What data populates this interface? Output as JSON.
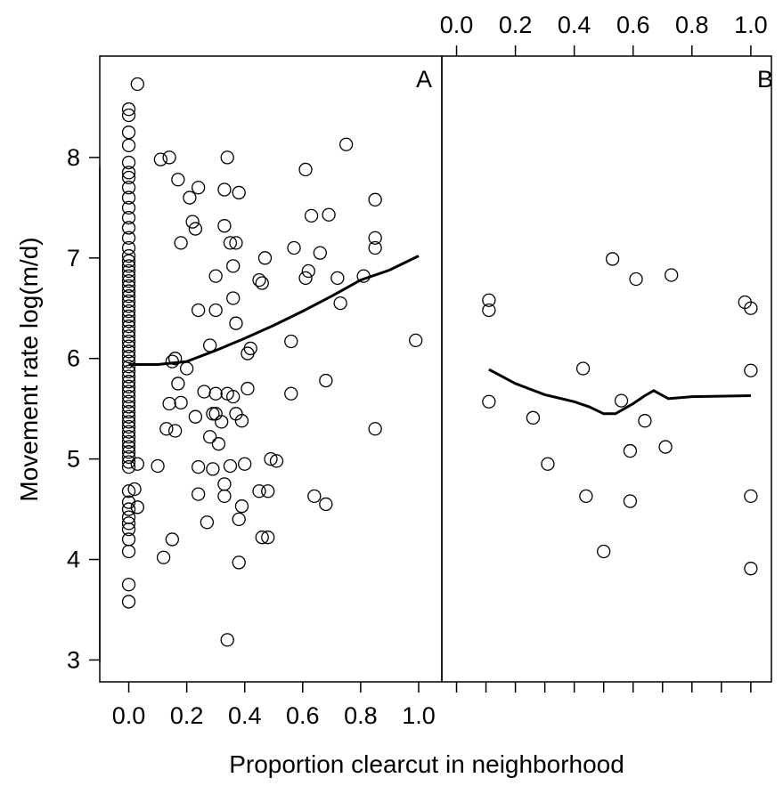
{
  "chart_data": {
    "type": "scatter",
    "ylabel": "Movement rate log(m/d)",
    "xlabel": "Proportion clearcut in neighborhood",
    "ylim": [
      2.8,
      9.0
    ],
    "yticks": [
      3,
      4,
      5,
      6,
      7,
      8
    ],
    "ytick_labels": [
      "3",
      "4",
      "5",
      "6",
      "7",
      "8"
    ],
    "xtick_labels": [
      "0.0",
      "0.2",
      "0.4",
      "0.6",
      "0.8",
      "1.0"
    ],
    "grid": false,
    "panels": [
      {
        "label": "A",
        "xlim": [
          -0.1,
          1.08
        ],
        "xticks": [
          0,
          0.2,
          0.4,
          0.6,
          0.8,
          1.0
        ],
        "tick_label_position": "bottom",
        "points": [
          [
            0,
            3.58
          ],
          [
            0,
            3.75
          ],
          [
            0,
            4.08
          ],
          [
            0,
            4.2
          ],
          [
            0,
            4.3
          ],
          [
            0,
            4.36
          ],
          [
            0,
            4.42
          ],
          [
            0,
            4.5
          ],
          [
            0,
            4.57
          ],
          [
            0,
            4.68
          ],
          [
            0,
            4.92
          ],
          [
            0,
            4.97
          ],
          [
            0,
            5.02
          ],
          [
            0,
            5.07
          ],
          [
            0,
            5.12
          ],
          [
            0,
            5.17
          ],
          [
            0,
            5.22
          ],
          [
            0,
            5.27
          ],
          [
            0,
            5.32
          ],
          [
            0,
            5.37
          ],
          [
            0,
            5.42
          ],
          [
            0,
            5.47
          ],
          [
            0,
            5.52
          ],
          [
            0,
            5.57
          ],
          [
            0,
            5.62
          ],
          [
            0,
            5.67
          ],
          [
            0,
            5.72
          ],
          [
            0,
            5.77
          ],
          [
            0,
            5.82
          ],
          [
            0,
            5.87
          ],
          [
            0,
            5.92
          ],
          [
            0,
            5.97
          ],
          [
            0,
            6.02
          ],
          [
            0,
            6.07
          ],
          [
            0,
            6.12
          ],
          [
            0,
            6.17
          ],
          [
            0,
            6.22
          ],
          [
            0,
            6.27
          ],
          [
            0,
            6.32
          ],
          [
            0,
            6.37
          ],
          [
            0,
            6.42
          ],
          [
            0,
            6.47
          ],
          [
            0,
            6.52
          ],
          [
            0,
            6.57
          ],
          [
            0,
            6.62
          ],
          [
            0,
            6.67
          ],
          [
            0,
            6.72
          ],
          [
            0,
            6.77
          ],
          [
            0,
            6.82
          ],
          [
            0,
            6.87
          ],
          [
            0,
            6.92
          ],
          [
            0,
            6.97
          ],
          [
            0,
            7.02
          ],
          [
            0,
            7.1
          ],
          [
            0,
            7.2
          ],
          [
            0,
            7.3
          ],
          [
            0,
            7.4
          ],
          [
            0,
            7.5
          ],
          [
            0,
            7.6
          ],
          [
            0,
            7.7
          ],
          [
            0,
            7.8
          ],
          [
            0,
            7.85
          ],
          [
            0,
            7.95
          ],
          [
            0,
            8.12
          ],
          [
            0,
            8.25
          ],
          [
            0,
            8.42
          ],
          [
            0,
            8.48
          ],
          [
            0.02,
            4.7
          ],
          [
            0.03,
            4.52
          ],
          [
            0.03,
            4.95
          ],
          [
            0.03,
            8.73
          ],
          [
            0.1,
            4.93
          ],
          [
            0.11,
            7.98
          ],
          [
            0.12,
            4.02
          ],
          [
            0.13,
            5.3
          ],
          [
            0.14,
            5.55
          ],
          [
            0.14,
            8.0
          ],
          [
            0.15,
            5.97
          ],
          [
            0.15,
            4.2
          ],
          [
            0.16,
            5.28
          ],
          [
            0.16,
            6.0
          ],
          [
            0.17,
            5.75
          ],
          [
            0.17,
            7.78
          ],
          [
            0.18,
            5.56
          ],
          [
            0.18,
            7.15
          ],
          [
            0.2,
            5.9
          ],
          [
            0.21,
            7.6
          ],
          [
            0.22,
            7.36
          ],
          [
            0.23,
            7.29
          ],
          [
            0.23,
            5.42
          ],
          [
            0.24,
            7.7
          ],
          [
            0.24,
            4.92
          ],
          [
            0.24,
            4.65
          ],
          [
            0.24,
            6.48
          ],
          [
            0.26,
            5.67
          ],
          [
            0.27,
            4.37
          ],
          [
            0.28,
            6.13
          ],
          [
            0.28,
            5.22
          ],
          [
            0.29,
            5.45
          ],
          [
            0.29,
            4.9
          ],
          [
            0.3,
            6.82
          ],
          [
            0.3,
            5.65
          ],
          [
            0.3,
            5.45
          ],
          [
            0.3,
            6.48
          ],
          [
            0.31,
            5.15
          ],
          [
            0.32,
            5.37
          ],
          [
            0.33,
            7.68
          ],
          [
            0.33,
            7.32
          ],
          [
            0.33,
            4.75
          ],
          [
            0.33,
            4.63
          ],
          [
            0.34,
            8.0
          ],
          [
            0.34,
            5.65
          ],
          [
            0.34,
            3.2
          ],
          [
            0.35,
            7.15
          ],
          [
            0.35,
            4.93
          ],
          [
            0.36,
            6.92
          ],
          [
            0.36,
            6.6
          ],
          [
            0.36,
            5.62
          ],
          [
            0.37,
            7.15
          ],
          [
            0.37,
            6.35
          ],
          [
            0.37,
            5.45
          ],
          [
            0.38,
            7.65
          ],
          [
            0.38,
            4.4
          ],
          [
            0.38,
            3.97
          ],
          [
            0.39,
            5.38
          ],
          [
            0.39,
            4.53
          ],
          [
            0.4,
            4.95
          ],
          [
            0.41,
            6.05
          ],
          [
            0.41,
            5.7
          ],
          [
            0.42,
            6.1
          ],
          [
            0.45,
            6.78
          ],
          [
            0.45,
            4.68
          ],
          [
            0.46,
            6.75
          ],
          [
            0.46,
            4.22
          ],
          [
            0.47,
            7.0
          ],
          [
            0.48,
            4.68
          ],
          [
            0.48,
            4.22
          ],
          [
            0.49,
            5.0
          ],
          [
            0.51,
            4.98
          ],
          [
            0.56,
            6.17
          ],
          [
            0.56,
            5.65
          ],
          [
            0.57,
            7.1
          ],
          [
            0.61,
            7.88
          ],
          [
            0.61,
            6.8
          ],
          [
            0.62,
            6.87
          ],
          [
            0.63,
            7.42
          ],
          [
            0.64,
            4.63
          ],
          [
            0.66,
            7.05
          ],
          [
            0.68,
            5.78
          ],
          [
            0.68,
            4.55
          ],
          [
            0.69,
            7.43
          ],
          [
            0.72,
            6.8
          ],
          [
            0.73,
            6.55
          ],
          [
            0.75,
            8.13
          ],
          [
            0.81,
            6.82
          ],
          [
            0.85,
            7.58
          ],
          [
            0.85,
            7.1
          ],
          [
            0.85,
            7.2
          ],
          [
            0.85,
            5.3
          ],
          [
            0.99,
            6.18
          ]
        ],
        "trend": [
          [
            0,
            5.94
          ],
          [
            0.1,
            5.94
          ],
          [
            0.2,
            5.97
          ],
          [
            0.3,
            6.08
          ],
          [
            0.4,
            6.2
          ],
          [
            0.5,
            6.33
          ],
          [
            0.6,
            6.47
          ],
          [
            0.7,
            6.62
          ],
          [
            0.8,
            6.78
          ],
          [
            0.9,
            6.88
          ],
          [
            1.0,
            7.02
          ]
        ]
      },
      {
        "label": "B",
        "xlim": [
          -0.05,
          1.07
        ],
        "xticks": [
          0,
          0.2,
          0.4,
          0.6,
          0.8,
          1.0
        ],
        "minor_xticks": [
          0.1,
          0.3,
          0.5,
          0.7,
          0.9
        ],
        "tick_label_position": "top",
        "points": [
          [
            0.11,
            6.58
          ],
          [
            0.11,
            6.48
          ],
          [
            0.11,
            5.57
          ],
          [
            0.26,
            5.41
          ],
          [
            0.31,
            4.95
          ],
          [
            0.43,
            5.9
          ],
          [
            0.44,
            4.63
          ],
          [
            0.5,
            4.08
          ],
          [
            0.53,
            6.99
          ],
          [
            0.56,
            5.58
          ],
          [
            0.59,
            5.08
          ],
          [
            0.59,
            4.58
          ],
          [
            0.61,
            6.79
          ],
          [
            0.64,
            5.38
          ],
          [
            0.71,
            5.12
          ],
          [
            0.73,
            6.83
          ],
          [
            0.98,
            6.56
          ],
          [
            1.0,
            6.5
          ],
          [
            1.0,
            5.88
          ],
          [
            1.0,
            4.63
          ],
          [
            1.0,
            3.91
          ]
        ],
        "trend": [
          [
            0.11,
            5.89
          ],
          [
            0.2,
            5.75
          ],
          [
            0.3,
            5.64
          ],
          [
            0.4,
            5.57
          ],
          [
            0.45,
            5.52
          ],
          [
            0.5,
            5.45
          ],
          [
            0.54,
            5.45
          ],
          [
            0.6,
            5.55
          ],
          [
            0.64,
            5.63
          ],
          [
            0.67,
            5.68
          ],
          [
            0.72,
            5.6
          ],
          [
            0.8,
            5.62
          ],
          [
            1.0,
            5.63
          ]
        ]
      }
    ]
  }
}
